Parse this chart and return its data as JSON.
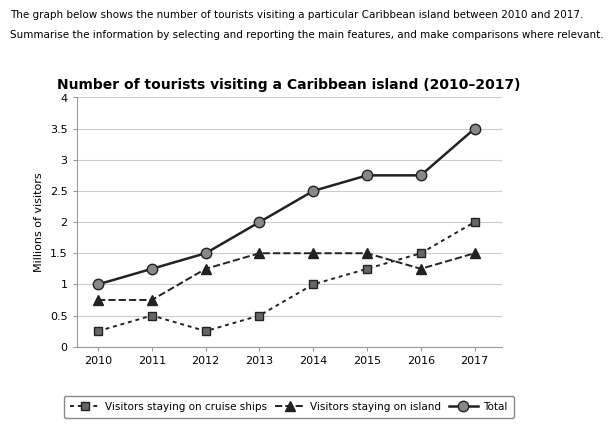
{
  "title": "Number of tourists visiting a Caribbean island (2010–2017)",
  "header_line1": "The graph below shows the number of tourists visiting a particular Caribbean island between 2010 and 2017.",
  "header_line2": "Summarise the information by selecting and reporting the main features, and make comparisons where relevant.",
  "ylabel": "Millions of visitors",
  "years": [
    2010,
    2011,
    2012,
    2013,
    2014,
    2015,
    2016,
    2017
  ],
  "cruise_ships": [
    0.25,
    0.5,
    0.25,
    0.5,
    1.0,
    1.25,
    1.5,
    2.0
  ],
  "island": [
    0.75,
    0.75,
    1.25,
    1.5,
    1.5,
    1.5,
    1.25,
    1.5
  ],
  "total": [
    1.0,
    1.25,
    1.5,
    2.0,
    2.5,
    2.75,
    2.75,
    3.5
  ],
  "ylim": [
    0,
    4
  ],
  "yticks": [
    0,
    0.5,
    1.0,
    1.5,
    2.0,
    2.5,
    3.0,
    3.5,
    4.0
  ],
  "background_color": "#ffffff",
  "grid_color": "#cccccc",
  "line_color": "#222222",
  "marker_gray": "#888888",
  "legend_cruise_label": "Visitors staying on cruise ships",
  "legend_island_label": "Visitors staying on island",
  "legend_total_label": "Total",
  "header1_fontsize": 7.5,
  "header2_fontsize": 7.5,
  "title_fontsize": 10,
  "tick_fontsize": 8,
  "ylabel_fontsize": 8
}
